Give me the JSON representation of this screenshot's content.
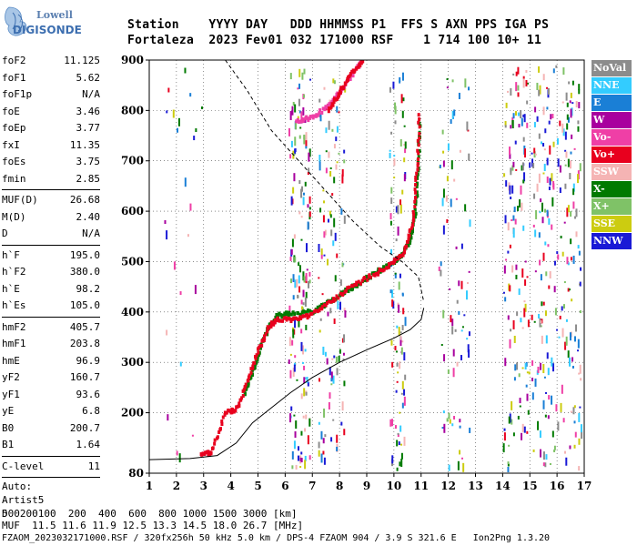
{
  "logo": {
    "line1": "Lowell",
    "line2": "DIGISONDE"
  },
  "header": {
    "row1": "Station    YYYY DAY   DDD HHMMSS P1  FFS S AXN PPS IGA PS",
    "row2": "Fortaleza  2023 Fev01 032 171000 RSF    1 714 100 10+ 11"
  },
  "params": {
    "group1": [
      {
        "label": "foF2",
        "value": "11.125"
      },
      {
        "label": "foF1",
        "value": "5.62"
      },
      {
        "label": "foF1p",
        "value": "N/A"
      },
      {
        "label": "foE",
        "value": "3.46"
      },
      {
        "label": "foEp",
        "value": "3.77"
      },
      {
        "label": "fxI",
        "value": "11.35"
      },
      {
        "label": "foEs",
        "value": "3.75"
      },
      {
        "label": "fmin",
        "value": "2.85"
      }
    ],
    "group2": [
      {
        "label": "MUF(D)",
        "value": "26.68"
      },
      {
        "label": "M(D)",
        "value": "2.40"
      },
      {
        "label": "D",
        "value": "N/A"
      }
    ],
    "group3": [
      {
        "label": "h`F",
        "value": "195.0"
      },
      {
        "label": "h`F2",
        "value": "380.0"
      },
      {
        "label": "h`E",
        "value": "98.2"
      },
      {
        "label": "h`Es",
        "value": "105.0"
      }
    ],
    "group4": [
      {
        "label": "hmF2",
        "value": "405.7"
      },
      {
        "label": "hmF1",
        "value": "203.8"
      },
      {
        "label": "hmE",
        "value": "96.9"
      },
      {
        "label": "yF2",
        "value": "160.7"
      },
      {
        "label": "yF1",
        "value": "93.6"
      },
      {
        "label": "yE",
        "value": "6.8"
      },
      {
        "label": "B0",
        "value": "200.7"
      },
      {
        "label": "B1",
        "value": "1.64"
      }
    ],
    "group5": [
      {
        "label": "C-level",
        "value": "11"
      }
    ],
    "auto": [
      "Auto:",
      "Artist5",
      "500200"
    ]
  },
  "legend": [
    {
      "label": "NoVal",
      "bg": "#8c8c8c",
      "fg": "#ffffff"
    },
    {
      "label": "NNE",
      "bg": "#33ccff",
      "fg": "#ffffff"
    },
    {
      "label": "E",
      "bg": "#1a7fd6",
      "fg": "#ffffff"
    },
    {
      "label": "W",
      "bg": "#a8009e",
      "fg": "#ffffff"
    },
    {
      "label": "Vo-",
      "bg": "#ef3fa6",
      "fg": "#ffffff"
    },
    {
      "label": "Vo+",
      "bg": "#e8001e",
      "fg": "#ffffff"
    },
    {
      "label": "SSW",
      "bg": "#f5b4b4",
      "fg": "#ffffff"
    },
    {
      "label": "X-",
      "bg": "#007a00",
      "fg": "#ffffff"
    },
    {
      "label": "X+",
      "bg": "#7fc267",
      "fg": "#ffffff"
    },
    {
      "label": "SSE",
      "bg": "#cccc10",
      "fg": "#ffffff"
    },
    {
      "label": "NNW",
      "bg": "#1a1ad6",
      "fg": "#ffffff"
    }
  ],
  "footer": {
    "line1": "D     100  200  400  600  800 1000 1500 3000 [km]",
    "line2": "MUF  11.5 11.6 11.9 12.5 13.3 14.5 18.0 26.7 [MHz]",
    "line3": "FZAOM_2023032171000.RSF / 320fx256h 50 kHz 5.0 km / DPS-4 FZAOM 904 / 3.9 S 321.6 E   Ion2Png 1.3.20"
  },
  "chart_data": {
    "type": "scatter",
    "title": "",
    "xlabel": "",
    "ylabel": "",
    "xlim": [
      1,
      17
    ],
    "ylim": [
      80,
      900
    ],
    "x_ticks": [
      1,
      2,
      3,
      4,
      5,
      6,
      7,
      8,
      9,
      10,
      11,
      12,
      13,
      14,
      15,
      16,
      17
    ],
    "y_ticks": [
      80,
      200,
      300,
      400,
      500,
      600,
      700,
      800,
      900
    ],
    "grid": "dotted",
    "legend_position": "right",
    "series": [
      {
        "name": "X-",
        "color": "#007a00",
        "trace": [
          [
            4.5,
            235
          ],
          [
            4.8,
            280
          ],
          [
            5.1,
            330
          ],
          [
            5.4,
            370
          ],
          [
            5.7,
            392
          ],
          [
            6.2,
            397
          ],
          [
            7.0,
            400
          ],
          [
            7.6,
            418
          ],
          [
            8.2,
            440
          ],
          [
            8.8,
            460
          ],
          [
            9.4,
            480
          ],
          [
            10.0,
            500
          ],
          [
            10.3,
            512
          ],
          [
            10.6,
            540
          ],
          [
            10.8,
            600
          ],
          [
            10.9,
            680
          ],
          [
            10.95,
            780
          ]
        ]
      },
      {
        "name": "Vo+",
        "color": "#e8001e",
        "trace": [
          [
            2.9,
            120
          ],
          [
            3.3,
            120
          ],
          [
            3.8,
            200
          ],
          [
            4.2,
            205
          ],
          [
            4.6,
            260
          ],
          [
            5.0,
            320
          ],
          [
            5.4,
            372
          ],
          [
            5.7,
            385
          ],
          [
            6.3,
            385
          ],
          [
            7.0,
            395
          ],
          [
            7.8,
            425
          ],
          [
            8.6,
            455
          ],
          [
            9.4,
            478
          ],
          [
            10.0,
            500
          ],
          [
            10.4,
            520
          ],
          [
            10.7,
            580
          ],
          [
            10.85,
            680
          ],
          [
            10.95,
            800
          ]
        ]
      },
      {
        "name": "Vo-",
        "color": "#ef3fa6",
        "trace": [
          [
            6.4,
            780
          ],
          [
            7.0,
            785
          ],
          [
            7.6,
            810
          ],
          [
            8.2,
            850
          ],
          [
            8.8,
            895
          ]
        ]
      },
      {
        "name": "Vo+",
        "color": "#e8001e",
        "trace": [
          [
            7.6,
            800
          ],
          [
            8.0,
            835
          ],
          [
            8.4,
            870
          ],
          [
            8.9,
            900
          ]
        ]
      }
    ],
    "profile": [
      [
        1.0,
        107
      ],
      [
        2.5,
        109
      ],
      [
        3.5,
        115
      ],
      [
        4.2,
        140
      ],
      [
        4.8,
        180
      ],
      [
        5.5,
        210
      ],
      [
        6.2,
        240
      ],
      [
        7.0,
        270
      ],
      [
        8.0,
        300
      ],
      [
        9.0,
        325
      ],
      [
        10.0,
        348
      ],
      [
        10.6,
        365
      ],
      [
        11.0,
        385
      ],
      [
        11.1,
        408
      ]
    ],
    "muf_curve": [
      [
        3.8,
        900
      ],
      [
        4.6,
        840
      ],
      [
        5.5,
        760
      ],
      [
        6.5,
        700
      ],
      [
        7.5,
        640
      ],
      [
        8.5,
        580
      ],
      [
        9.5,
        530
      ],
      [
        10.3,
        500
      ],
      [
        10.9,
        470
      ],
      [
        11.1,
        420
      ]
    ]
  }
}
